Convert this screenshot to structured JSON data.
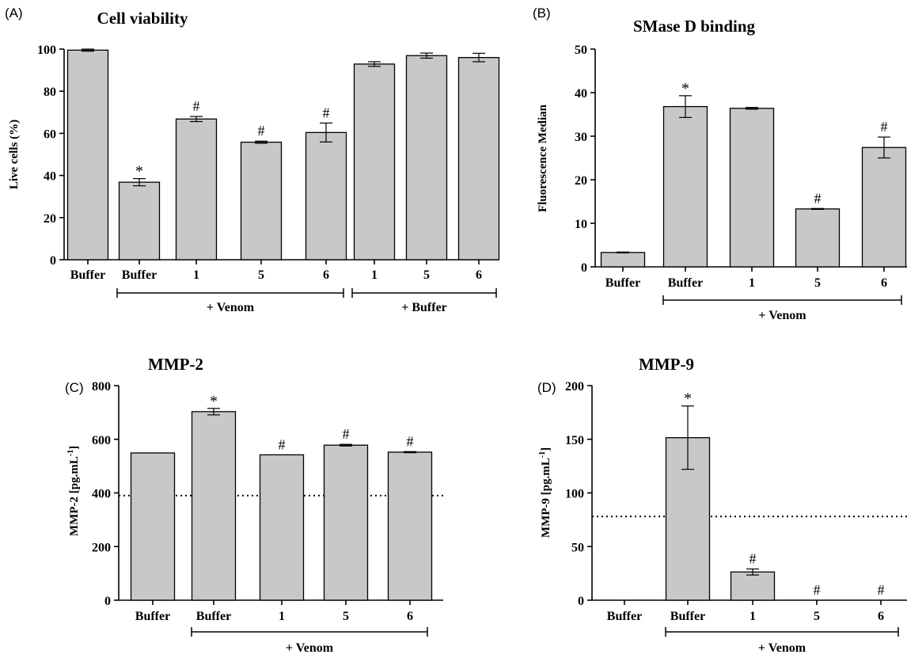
{
  "chart_data": [
    {
      "panel": "(A)",
      "type": "bar",
      "title": "Cell viability",
      "ylabel": "Live cells (%)",
      "ylim": [
        0,
        100
      ],
      "yticks": [
        0,
        20,
        40,
        60,
        80,
        100
      ],
      "categories": [
        "Buffer",
        "Buffer",
        "1",
        "5",
        "6",
        "1",
        "5",
        "6"
      ],
      "values": [
        99.5,
        36.8,
        66.8,
        55.8,
        60.4,
        92.9,
        96.9,
        96.0
      ],
      "errors": [
        0.5,
        1.7,
        1.2,
        0.5,
        4.5,
        1.1,
        1.2,
        2.0
      ],
      "annotations": [
        "",
        "*",
        "#",
        "#",
        "#",
        "",
        "",
        ""
      ],
      "groups": [
        {
          "label": "+ Venom",
          "from": 1,
          "to": 4
        },
        {
          "label": "+ Buffer",
          "from": 5,
          "to": 7
        }
      ]
    },
    {
      "panel": "(B)",
      "type": "bar",
      "title": "SMase D binding",
      "ylabel": "Fluorescence Median",
      "ylim": [
        0,
        50
      ],
      "yticks": [
        0,
        10,
        20,
        30,
        40,
        50
      ],
      "categories": [
        "Buffer",
        "Buffer",
        "1",
        "5",
        "6"
      ],
      "values": [
        3.3,
        36.8,
        36.4,
        13.3,
        27.4
      ],
      "errors": [
        0.1,
        2.5,
        0.2,
        0.1,
        2.4
      ],
      "annotations": [
        "",
        "*",
        "",
        "#",
        "#"
      ],
      "groups": [
        {
          "label": "+ Venom",
          "from": 1,
          "to": 4
        }
      ]
    },
    {
      "panel": "(C)",
      "type": "bar",
      "title": "MMP-2",
      "ylabel": "MMP-2 [pg.mL-1]",
      "ylabel_main": "MMP-2 [pg.mL",
      "ylabel_sup": "-1",
      "ylabel_end": "]",
      "ylim": [
        0,
        800
      ],
      "yticks": [
        0,
        200,
        400,
        600,
        800
      ],
      "categories": [
        "Buffer",
        "Buffer",
        "1",
        "5",
        "6"
      ],
      "values": [
        549,
        703,
        542,
        578,
        552
      ],
      "errors": [
        0,
        12,
        0,
        3,
        2
      ],
      "annotations": [
        "",
        "*",
        "#",
        "#",
        "#"
      ],
      "reference_line": 390,
      "groups": [
        {
          "label": "+ Venom",
          "from": 1,
          "to": 4
        }
      ]
    },
    {
      "panel": "(D)",
      "type": "bar",
      "title": "MMP-9",
      "ylabel": "MMP-9 [pg.mL-1]",
      "ylabel_main": "MMP-9 [pg.mL",
      "ylabel_sup": "-1",
      "ylabel_end": "]",
      "ylim": [
        0,
        200
      ],
      "yticks": [
        0,
        50,
        100,
        150,
        200
      ],
      "categories": [
        "Buffer",
        "Buffer",
        "1",
        "5",
        "6"
      ],
      "values": [
        0,
        151.5,
        26.3,
        0,
        0
      ],
      "errors": [
        0,
        29.5,
        2.8,
        0,
        0
      ],
      "annotations": [
        "",
        "*",
        "#",
        "#",
        "#"
      ],
      "reference_line": 78,
      "groups": [
        {
          "label": "+ Venom",
          "from": 1,
          "to": 4
        }
      ]
    }
  ],
  "colors": {
    "bar_fill": "#c8c8c8",
    "bar_stroke": "#000000",
    "axis": "#000000"
  }
}
